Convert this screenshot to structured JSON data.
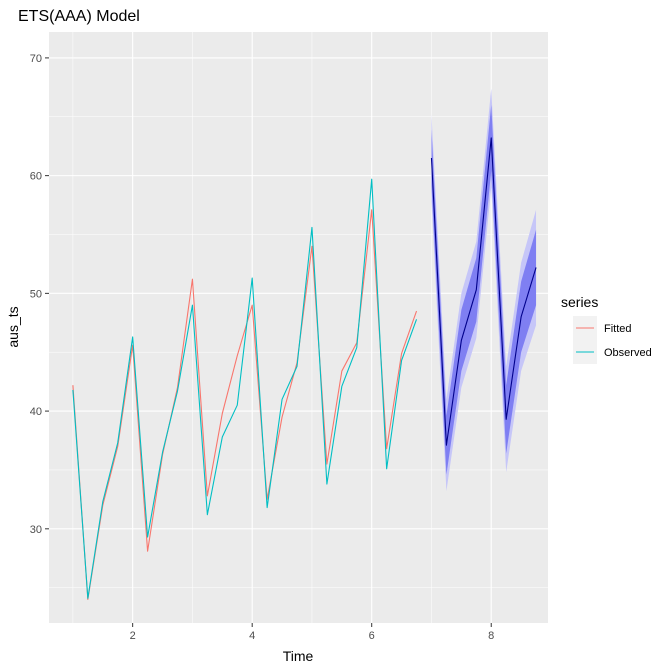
{
  "chart_data": {
    "type": "line",
    "title": "ETS(AAA) Model",
    "xlabel": "Time",
    "ylabel": "aus_ts",
    "xlim": [
      0.6,
      8.95
    ],
    "ylim": [
      22,
      72.2
    ],
    "xticks": [
      2,
      4,
      6,
      8
    ],
    "yticks": [
      30,
      40,
      50,
      60,
      70
    ],
    "grid": true,
    "legend": {
      "title": "series",
      "position": "right"
    },
    "series": [
      {
        "name": "Fitted",
        "color": "#F8766D",
        "x": [
          1,
          1.25,
          1.5,
          1.75,
          2,
          2.25,
          2.5,
          2.75,
          3,
          3.25,
          3.5,
          3.75,
          4,
          4.25,
          4.5,
          4.75,
          5,
          5.25,
          5.5,
          5.75,
          6,
          6.25,
          6.5,
          6.75
        ],
        "y": [
          42.2,
          24.0,
          32.0,
          37.0,
          45.6,
          28.1,
          36.3,
          42.0,
          51.2,
          32.8,
          39.8,
          44.7,
          49.0,
          32.5,
          39.5,
          44.1,
          54.0,
          35.5,
          43.4,
          45.8,
          57.1,
          36.8,
          44.9,
          48.5
        ]
      },
      {
        "name": "Observed",
        "color": "#00BFC4",
        "x": [
          1,
          1.25,
          1.5,
          1.75,
          2,
          2.25,
          2.5,
          2.75,
          3,
          3.25,
          3.5,
          3.75,
          4,
          4.25,
          4.5,
          4.75,
          5,
          5.25,
          5.5,
          5.75,
          6,
          6.25,
          6.5,
          6.75
        ],
        "y": [
          41.8,
          24.1,
          32.3,
          37.3,
          46.3,
          29.3,
          36.5,
          41.7,
          49.0,
          31.2,
          37.8,
          40.5,
          51.3,
          31.8,
          41.0,
          43.8,
          55.6,
          33.8,
          42.1,
          45.4,
          59.7,
          35.1,
          44.3,
          47.8
        ]
      }
    ],
    "forecast": {
      "color": "#00008B",
      "x": [
        7,
        7.25,
        7.5,
        7.75,
        8,
        8.25,
        8.5,
        8.75
      ],
      "mean": [
        61.5,
        37.1,
        46.0,
        50.3,
        63.2,
        39.3,
        48.0,
        52.2
      ],
      "lo80": [
        59.1,
        34.6,
        43.4,
        47.6,
        60.4,
        36.4,
        45.0,
        49.0
      ],
      "hi80": [
        63.9,
        39.6,
        48.6,
        53.0,
        66.0,
        42.2,
        51.0,
        55.4
      ],
      "lo95": [
        57.8,
        33.2,
        42.0,
        46.2,
        59.0,
        34.8,
        43.4,
        47.3
      ],
      "hi95": [
        65.2,
        41.0,
        50.0,
        54.4,
        67.4,
        43.8,
        52.6,
        57.1
      ],
      "lo80_fill": "#7F7FF2",
      "lo95_fill": "#C6C6F8"
    }
  }
}
